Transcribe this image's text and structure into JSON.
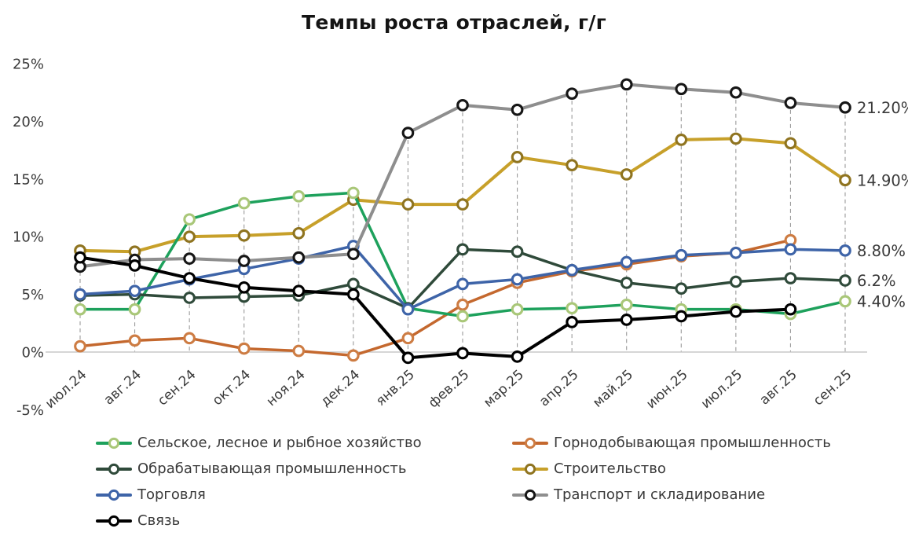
{
  "chart_data": {
    "type": "line",
    "title": "Темпы роста отраслей, г/г",
    "x_categories": [
      "июл.24",
      "авг.24",
      "сен.24",
      "окт.24",
      "ноя.24",
      "дек.24",
      "янв.25",
      "фев.25",
      "мар.25",
      "апр.25",
      "май.25",
      "июн.25",
      "июл.25",
      "авг.25",
      "сен.25"
    ],
    "y_ticks": [
      "25%",
      "20%",
      "15%",
      "10%",
      "5%",
      "0%",
      "-5%"
    ],
    "y_tick_values": [
      25,
      20,
      15,
      10,
      5,
      0,
      -5
    ],
    "y_axis": {
      "min": -5,
      "max": 25,
      "unit": "%"
    },
    "grid": "vertical dashed drop-lines from top point to zero axis, single horizontal zero line",
    "legend_position": "bottom, two columns",
    "series": [
      {
        "name": "Сельское, лесное и рыбное хозяйство",
        "color": "#1ea15c",
        "marker_stroke": "#a9c778",
        "values": [
          3.7,
          3.7,
          11.5,
          12.9,
          13.5,
          13.8,
          3.8,
          3.1,
          3.7,
          3.8,
          4.1,
          3.7,
          3.7,
          3.3,
          4.4
        ],
        "end_label": "4.40%"
      },
      {
        "name": "Горнодобывающая промышленность",
        "color": "#c4682e",
        "marker_stroke": "#cd7c43",
        "values": [
          0.5,
          1.0,
          1.2,
          0.3,
          0.1,
          -0.3,
          1.2,
          4.1,
          6.0,
          7.0,
          7.6,
          8.3,
          8.6,
          9.7,
          null
        ],
        "end_label": null
      },
      {
        "name": "Обрабатывающая промышленность",
        "color": "#2f4a3a",
        "marker_stroke": "#2f4a3a",
        "values": [
          4.9,
          5.0,
          4.7,
          4.8,
          4.9,
          5.9,
          3.8,
          8.9,
          8.7,
          7.1,
          6.0,
          5.5,
          6.1,
          6.4,
          6.2
        ],
        "end_label": "6.2%"
      },
      {
        "name": "Строительство",
        "color": "#c7a02a",
        "marker_stroke": "#8f7420",
        "values": [
          8.8,
          8.7,
          10.0,
          10.1,
          10.3,
          13.2,
          12.8,
          12.8,
          16.9,
          16.2,
          15.4,
          18.4,
          18.5,
          18.1,
          14.9
        ],
        "end_label": "14.90%"
      },
      {
        "name": "Торговля",
        "color": "#3e64a8",
        "marker_stroke": "#3e64a8",
        "values": [
          5.0,
          5.3,
          6.3,
          7.2,
          8.1,
          9.2,
          3.7,
          5.9,
          6.3,
          7.1,
          7.8,
          8.4,
          8.6,
          8.9,
          8.8
        ],
        "end_label": "8.80%"
      },
      {
        "name": "Транспорт и складирование",
        "color": "#8e8e8e",
        "marker_stroke": "#161616",
        "values": [
          7.4,
          8.0,
          8.1,
          7.9,
          8.2,
          8.5,
          19.0,
          21.4,
          21.0,
          22.4,
          23.2,
          22.8,
          22.5,
          21.6,
          21.2
        ],
        "end_label": "21.20%"
      },
      {
        "name": "Связь",
        "color": "#000000",
        "marker_stroke": "#000000",
        "values": [
          8.2,
          7.5,
          6.4,
          5.6,
          5.3,
          5.0,
          -0.5,
          -0.1,
          -0.4,
          2.6,
          2.8,
          3.1,
          3.5,
          3.7,
          null
        ],
        "end_label": null
      }
    ],
    "legend": {
      "left": [
        "Сельское, лесное и рыбное хозяйство",
        "Обрабатывающая промышленность",
        "Торговля",
        "Связь"
      ],
      "right": [
        "Горнодобывающая промышленность",
        "Строительство",
        "Транспорт и складирование"
      ]
    }
  }
}
